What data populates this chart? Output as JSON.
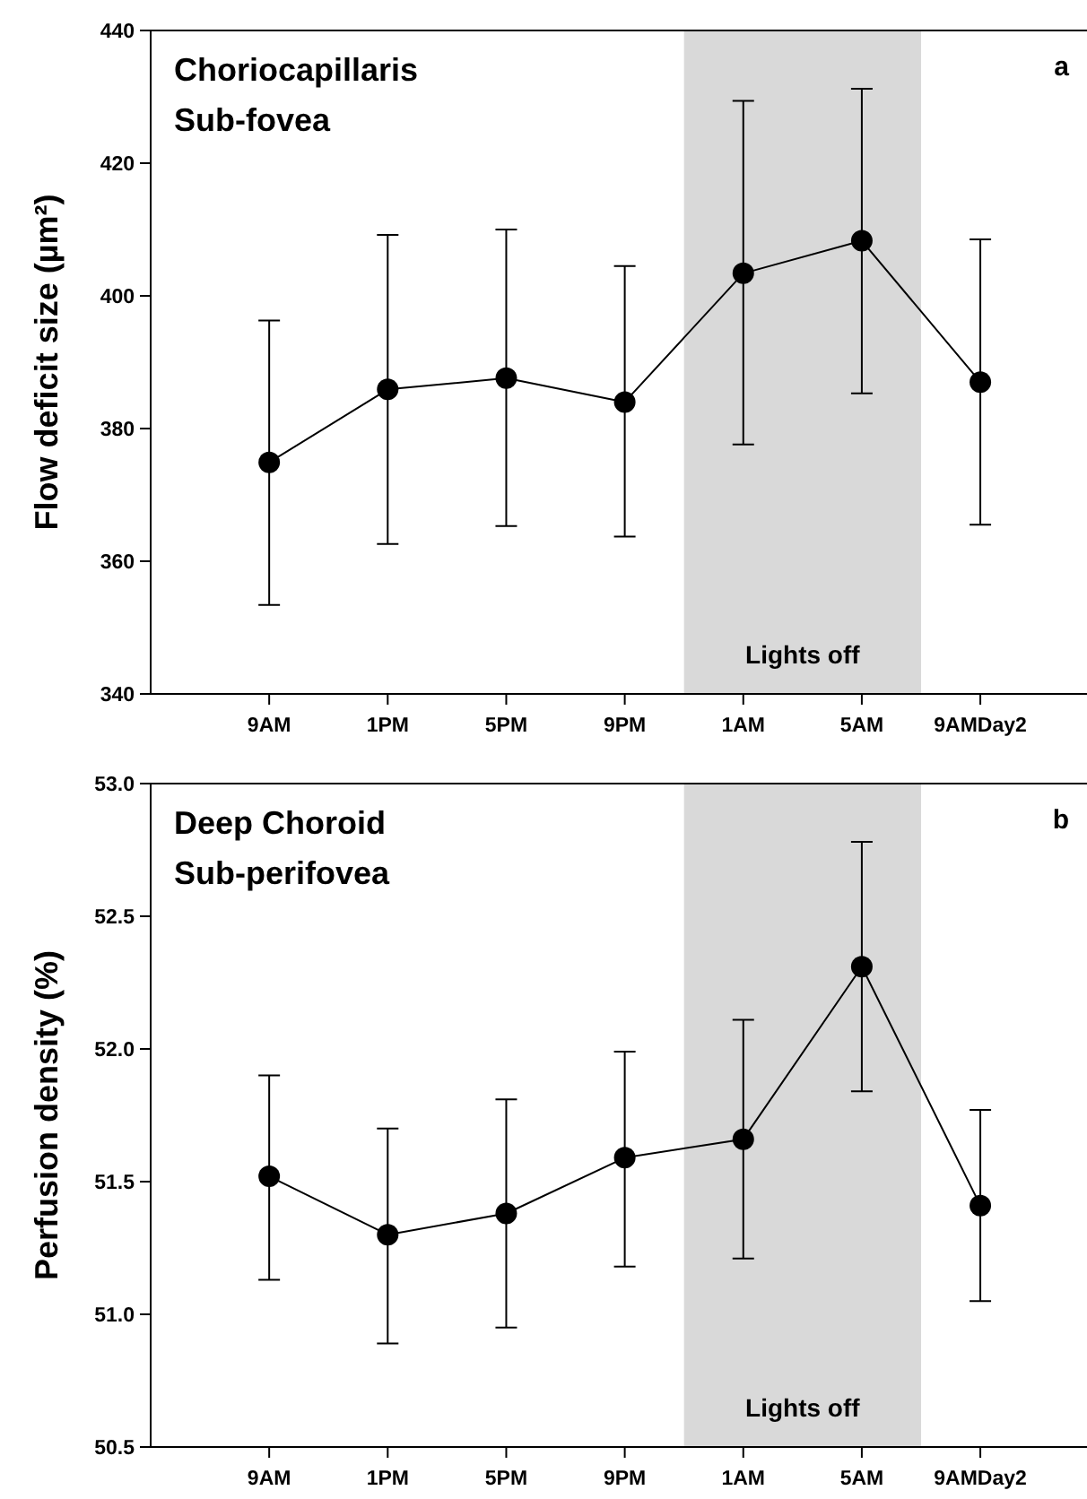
{
  "chart_data": [
    {
      "type": "line",
      "title": "Choriocapillaris\nSub-fovea",
      "ylabel": "Flow deficit size (µm²)",
      "annotations": [
        "a"
      ],
      "categories": [
        "9AM",
        "1PM",
        "5PM",
        "9PM",
        "1AM",
        "5AM",
        "9AMDay2"
      ],
      "ylim": [
        340,
        440
      ],
      "yticks": [
        340,
        360,
        380,
        400,
        420,
        440
      ],
      "series": [
        {
          "color": "#000000",
          "values": [
            374.9,
            385.9,
            387.6,
            384.0,
            403.4,
            408.3,
            387.0
          ],
          "errors": [
            [
              353.4,
              396.3
            ],
            [
              362.6,
              409.2
            ],
            [
              365.3,
              410.0
            ],
            [
              363.7,
              404.5
            ],
            [
              377.6,
              429.4
            ],
            [
              385.3,
              431.2
            ],
            [
              365.5,
              408.5
            ]
          ]
        }
      ],
      "bands": [
        {
          "axis": "x",
          "from": "1AM",
          "to": "5AM",
          "label": "Lights off",
          "color": "#d9d9d9"
        }
      ],
      "marker": "circle",
      "line_style": "solid",
      "grid": false
    },
    {
      "type": "line",
      "title": "Deep Choroid\nSub-perifovea",
      "ylabel": "Perfusion density (%)",
      "annotations": [
        "b"
      ],
      "categories": [
        "9AM",
        "1PM",
        "5PM",
        "9PM",
        "1AM",
        "5AM",
        "9AMDay2"
      ],
      "ylim": [
        50.5,
        53.0
      ],
      "yticks": [
        {
          "value": 50.5,
          "label": "50.5"
        },
        {
          "value": 51.0,
          "label": "51.0"
        },
        {
          "value": 51.5,
          "label": "51.5"
        },
        {
          "value": 52.0,
          "label": "52.0"
        },
        {
          "value": 52.5,
          "label": "52.5"
        },
        {
          "value": 53.0,
          "label": "53.0"
        }
      ],
      "series": [
        {
          "color": "#000000",
          "values": [
            51.52,
            51.3,
            51.38,
            51.59,
            51.66,
            52.31,
            51.41
          ],
          "errors": [
            [
              51.13,
              51.9
            ],
            [
              50.89,
              51.7
            ],
            [
              50.95,
              51.81
            ],
            [
              51.18,
              51.99
            ],
            [
              51.21,
              52.11
            ],
            [
              51.84,
              52.78
            ],
            [
              51.05,
              51.77
            ]
          ]
        }
      ],
      "bands": [
        {
          "axis": "x",
          "from": "1AM",
          "to": "5AM",
          "label": "Lights off",
          "color": "#d9d9d9"
        }
      ],
      "marker": "circle",
      "line_style": "solid",
      "grid": false
    }
  ]
}
